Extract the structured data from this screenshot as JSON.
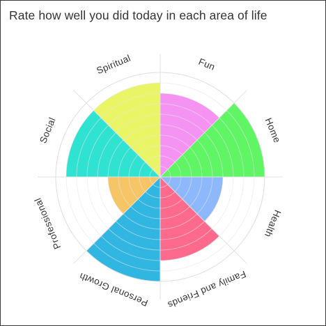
{
  "title": "Rate how well you did today in each area of life",
  "chart_data": {
    "type": "polar-area",
    "title": "Rate how well you did today in each area of life",
    "categories": [
      "Fun",
      "Home",
      "Health",
      "Family and Friends",
      "Personal Growth",
      "Professional",
      "Social",
      "Spiritual"
    ],
    "values": [
      8,
      10,
      6,
      8,
      10,
      5,
      9,
      9
    ],
    "colors": [
      "#f593f3",
      "#60f565",
      "#8db8fc",
      "#fd6a8e",
      "#31b6e2",
      "#f6c565",
      "#2fe2d2",
      "#eaf565"
    ],
    "rmax": 10,
    "grid": true,
    "gridline_color": "#e6e6e6"
  }
}
